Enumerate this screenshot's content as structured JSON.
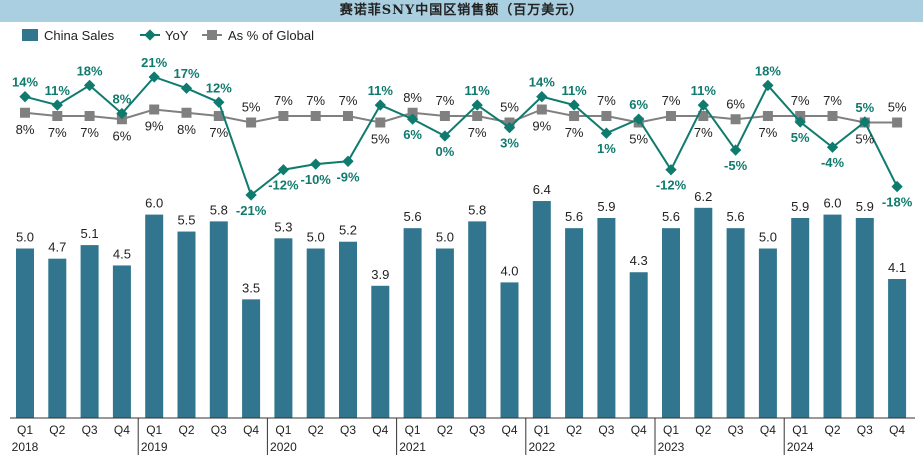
{
  "chart_data": {
    "type": "bar+line",
    "title": "赛诺菲SNY中国区销售额（百万美元）",
    "categories": [
      "Q1",
      "Q2",
      "Q3",
      "Q4",
      "Q1",
      "Q2",
      "Q3",
      "Q4",
      "Q1",
      "Q2",
      "Q3",
      "Q4",
      "Q1",
      "Q2",
      "Q3",
      "Q4",
      "Q1",
      "Q2",
      "Q3",
      "Q4",
      "Q1",
      "Q2",
      "Q3",
      "Q4",
      "Q1",
      "Q2",
      "Q3",
      "Q4"
    ],
    "years": [
      "2018",
      "2019",
      "2020",
      "2021",
      "2022",
      "2023",
      "2024"
    ],
    "legend_position": "top-left",
    "series": [
      {
        "name": "China Sales",
        "type": "bar",
        "color": "#31768e",
        "values": [
          5.0,
          4.7,
          5.1,
          4.5,
          6.0,
          5.5,
          5.8,
          3.5,
          5.3,
          5.0,
          5.2,
          3.9,
          5.6,
          5.0,
          5.8,
          4.0,
          6.4,
          5.6,
          5.9,
          4.3,
          5.6,
          6.2,
          5.6,
          5.0,
          5.9,
          6.0,
          5.9,
          4.1
        ]
      },
      {
        "name": "YoY",
        "type": "line",
        "unit": "%",
        "color": "#0f7b6e",
        "values": [
          14,
          11,
          18,
          8,
          21,
          17,
          12,
          -21,
          -12,
          -10,
          -9,
          11,
          6,
          0,
          11,
          3,
          14,
          11,
          1,
          6,
          -12,
          11,
          -5,
          18,
          5,
          -4,
          5,
          -18
        ]
      },
      {
        "name": "As % of Global",
        "type": "line",
        "unit": "%",
        "color": "#808080",
        "values": [
          8,
          7,
          7,
          6,
          9,
          8,
          7,
          5,
          7,
          7,
          7,
          5,
          8,
          7,
          7,
          5,
          9,
          7,
          7,
          5,
          7,
          7,
          6,
          7,
          7,
          7,
          5,
          5
        ]
      }
    ]
  }
}
